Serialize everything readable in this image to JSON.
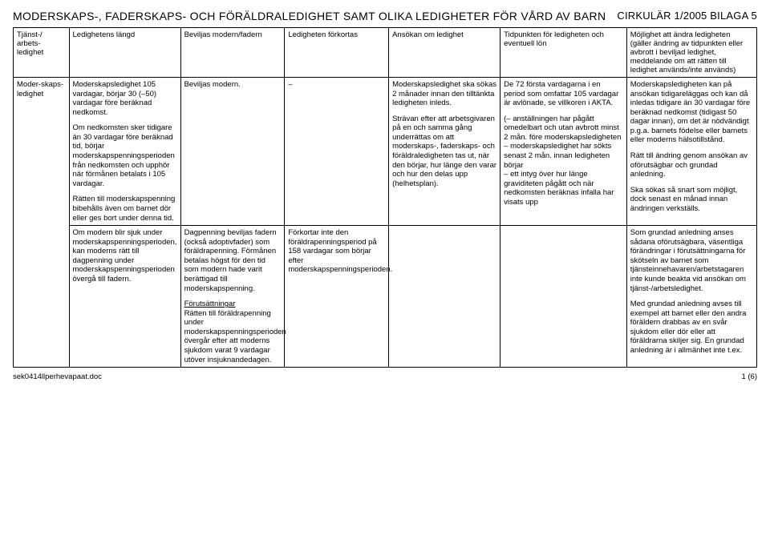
{
  "header": {
    "title": "MODERSKAPS-, FADERSKAPS- OCH FÖRÄLDRALEDIGHET SAMT OLIKA LEDIGHETER FÖR VÅRD AV BARN",
    "circular": "CIRKULÄR 1/2005 BILAGA 5"
  },
  "columns": [
    "Tjänst-/ arbets-ledighet",
    "Ledighetens längd",
    "Beviljas modern/fadern",
    "Ledigheten förkortas",
    "Ansökan om ledighet",
    "Tidpunkten för ledigheten och eventuell lön",
    "Möjlighet att ändra ledigheten (gäller ändring av tidpunkten eller avbrott i beviljad ledighet, meddelande om att rätten till ledighet används/inte används)"
  ],
  "rows": [
    {
      "c0": "Moder-skaps-ledighet",
      "c1": [
        "Moderskapsledighet 105 vardagar, börjar 30 (–50) vardagar före beräknad nedkomst.",
        "Om nedkomsten sker tidigare än 30 vardagar före beräknad tid, börjar moderskapspenningsperioden från nedkomsten och upphör när förmånen betalats i 105 vardagar.",
        "Rätten till moderskapspenning bibehålls även om barnet dör eller ges bort under denna tid."
      ],
      "c2": [
        "Beviljas modern."
      ],
      "c3": [
        "–"
      ],
      "c4": [
        "Moderskapsledighet ska sökas 2 månader innan den tilltänkta ledigheten inleds.",
        "Strävan efter att arbetsgivaren på en och samma gång underrättas om att moderskaps-, faderskaps- och föräldraledigheten tas ut, när den börjar, hur länge den varar och hur den delas upp (helhetsplan)."
      ],
      "c5": [
        "De 72 första vardagarna i en period som omfattar 105 vardagar är avlönade, se villkoren i AKTA.",
        "(– anställningen har pågått omedelbart och utan avbrott minst 2 mån. före moderskapsledigheten",
        "– moderskapsledighet har sökts senast 2 mån. innan ledigheten börjar",
        "– ett intyg över hur länge graviditeten pågått och när nedkomsten beräknas infalla har visats upp"
      ],
      "c6": [
        "Moderskapsledigheten kan på ansökan tidigareläggas och kan då inledas tidigare än 30 vardagar före beräknad nedkomst (tidigast 50 dagar innan), om det är nödvändigt p.g.a. barnets födelse eller barnets eller moderns hälsotillstånd.",
        "Rätt till ändring genom ansökan av oförutsägbar och grundad anledning.",
        "Ska sökas så snart som möjligt, dock senast en månad innan ändringen verkställs."
      ]
    },
    {
      "c0": "",
      "c1": [
        "Om modern blir sjuk under moderskapspenningsperioden, kan moderns rätt till dagpenning under moderskapspenningsperioden övergå till fadern."
      ],
      "c2": [
        "Dagpenning beviljas fadern (också adoptivfader) som föräldrapenning. Förmånen betalas högst för den tid som modern hade varit berättigad till moderskapspenning.",
        "Förutsättningar",
        "Rätten till föräldrapenning under moderskapspenningsperioden övergår efter att moderns sjukdom varat 9 vardagar utöver insjuknandedagen."
      ],
      "c3": [
        "Förkortar inte den föräldrapenningsperiod på 158 vardagar som börjar efter moderskapspenningsperioden."
      ],
      "c4": [
        ""
      ],
      "c5": [
        ""
      ],
      "c6": [
        "Som grundad anledning anses sådana oförutsägbara, väsentliga förändringar i förutsättningarna för skötseln av barnet som tjänsteinnehavaren/arbetstagaren inte kunde beakta vid ansökan om tjänst-/arbetsledighet.",
        "Med grundad anledning avses till exempel att barnet eller den andra föräldern drabbas av en svår sjukdom eller dör eller att föräldrarna skiljer sig. En grundad anledning är i allmänhet inte t.ex."
      ]
    }
  ],
  "footer": {
    "left": "sek0414llperhevapaat.doc",
    "right": "1 (6)"
  },
  "style": {
    "background": "#ffffff",
    "text_color": "#000000",
    "border_color": "#000000",
    "title_fontsize": 14,
    "body_fontsize": 9.5,
    "col_widths_pct": [
      7.5,
      15,
      14,
      14,
      15,
      17,
      17.5
    ]
  }
}
